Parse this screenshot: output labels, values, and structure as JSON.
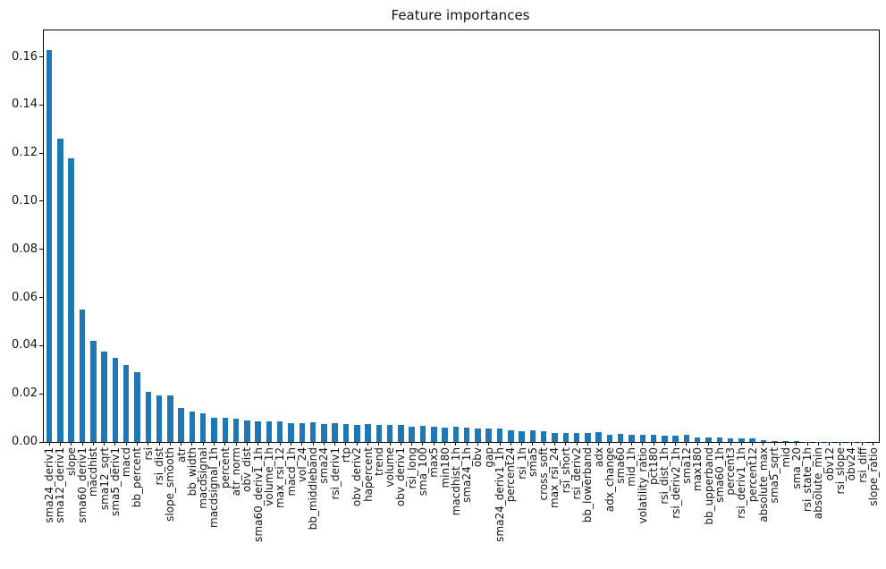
{
  "title": "Feature importances",
  "chart_data": {
    "type": "bar",
    "title": "Feature importances",
    "xlabel": "",
    "ylabel": "",
    "grid": false,
    "legend": null,
    "bar_color": "#1f77b4",
    "axis_color": "#000000",
    "x_tick_rotation": 90,
    "ylim": [
      0,
      0.171
    ],
    "yticks": [
      0.0,
      0.02,
      0.04,
      0.06,
      0.08,
      0.1,
      0.12,
      0.14,
      0.16
    ],
    "categories": [
      "sma24_deriv1",
      "sma12_deriv1",
      "slope",
      "sma60_deriv1",
      "macdhist",
      "sma12_sqrt",
      "sma5_deriv1",
      "macd",
      "bb_percent",
      "rsi",
      "rsi_dist",
      "slope_smooth",
      "atr",
      "bb_width",
      "macdsignal",
      "macdsignal_1h",
      "percent",
      "atr_norm",
      "obv_dist",
      "sma60_deriv1_1h",
      "volume_1h",
      "max_rsi_12",
      "macd_1h",
      "vol_24",
      "bb_middleband",
      "sma24",
      "rsi_deriv1",
      "rtp",
      "obv_deriv2",
      "hapercent",
      "trend",
      "volume",
      "obv_deriv1",
      "rsi_long",
      "sma_100",
      "max5",
      "min180",
      "macdhist_1h",
      "sma24_1h",
      "obv",
      "gap",
      "sma24_deriv1_1h",
      "percent24",
      "rsi_1h",
      "sma5",
      "cross_soft",
      "max_rsi_24",
      "rsi_short",
      "rsi_deriv2",
      "bb_lowerband",
      "adx",
      "adx_change",
      "sma60",
      "mid_1h",
      "volatility_ratio",
      "pct180",
      "rsi_dist_1h",
      "rsi_deriv2_1h",
      "sma12",
      "max180",
      "bb_upperband",
      "sma60_1h",
      "percent3",
      "rsi_deriv1_1h",
      "percent12",
      "absolute_max",
      "sma5_sqrt",
      "mid",
      "sma_20",
      "rsi_state_1h",
      "absolute_min",
      "obv12",
      "rsi_slope",
      "obv24",
      "rsi_diff",
      "slope_ratio"
    ],
    "values": [
      0.163,
      0.126,
      0.118,
      0.055,
      0.042,
      0.0374,
      0.0348,
      0.0318,
      0.029,
      0.0208,
      0.0194,
      0.0194,
      0.0142,
      0.0127,
      0.0119,
      0.01,
      0.0101,
      0.0098,
      0.009,
      0.0084,
      0.0084,
      0.0086,
      0.0079,
      0.0078,
      0.008,
      0.0076,
      0.0077,
      0.0074,
      0.0072,
      0.0073,
      0.007,
      0.0071,
      0.0072,
      0.0065,
      0.0066,
      0.0063,
      0.0061,
      0.0062,
      0.0058,
      0.0056,
      0.0057,
      0.0054,
      0.0049,
      0.0046,
      0.0047,
      0.0043,
      0.0038,
      0.0037,
      0.0037,
      0.0036,
      0.0041,
      0.0031,
      0.0033,
      0.0031,
      0.0029,
      0.0029,
      0.0026,
      0.0026,
      0.0028,
      0.0017,
      0.0017,
      0.0017,
      0.0014,
      0.0016,
      0.0014,
      0.0009,
      0.0002,
      0.0002,
      0.0002,
      0.0001,
      0.0001,
      0.0001,
      5e-05,
      4e-05,
      3e-05,
      2e-05
    ]
  }
}
